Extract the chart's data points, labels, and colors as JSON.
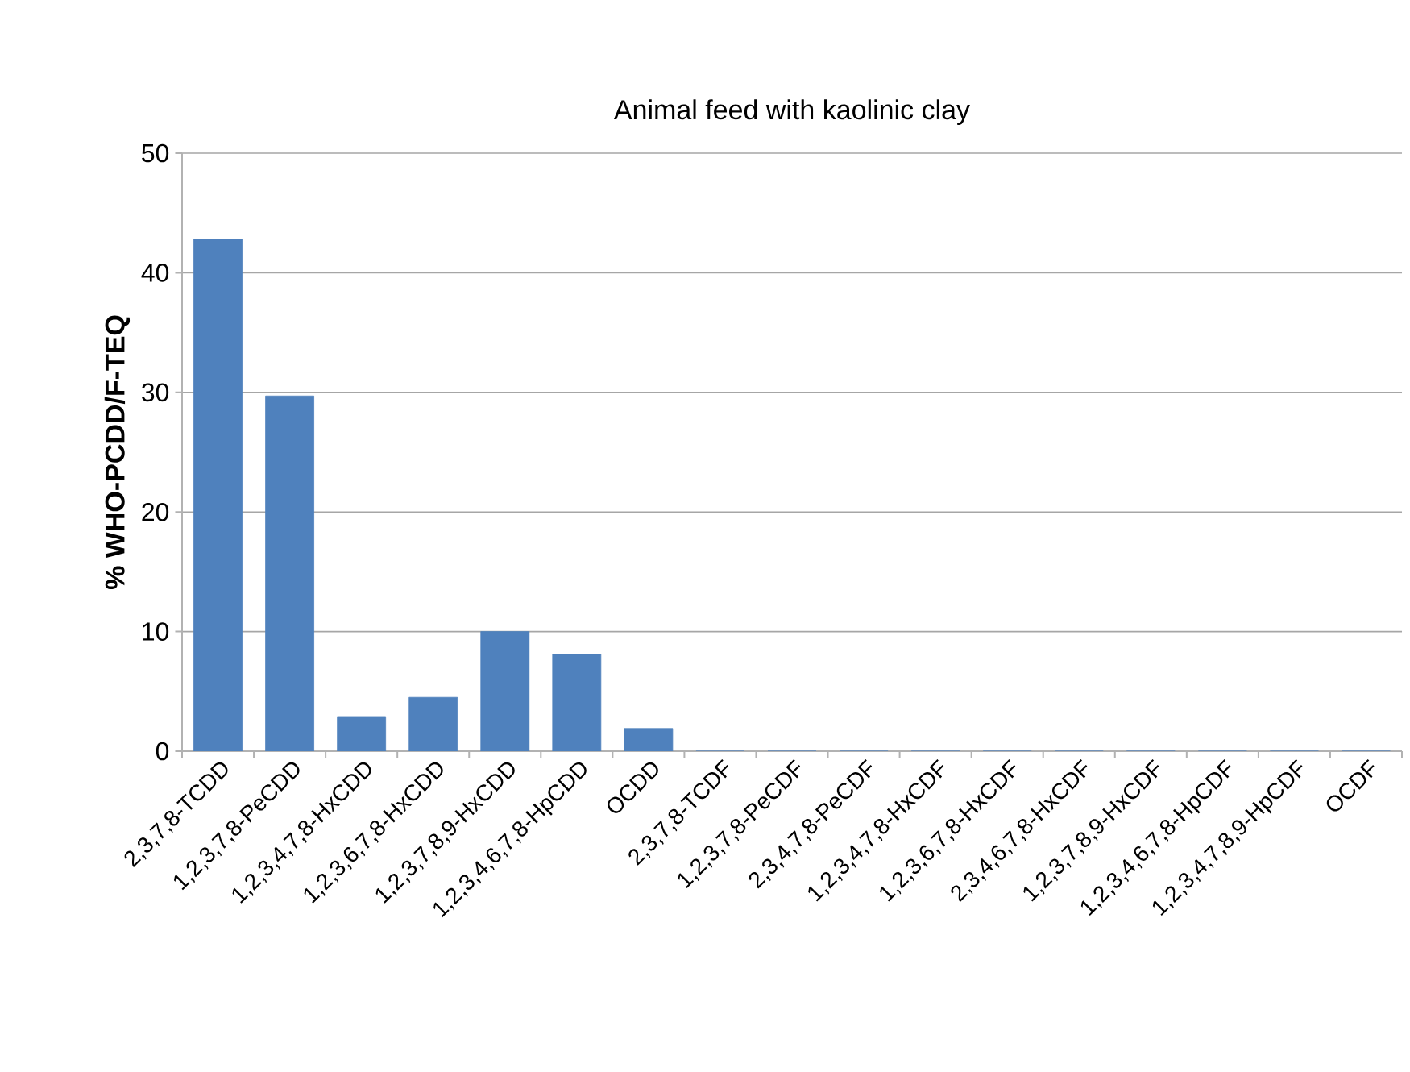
{
  "chart_data": {
    "type": "bar",
    "title": "Animal feed with kaolinic clay",
    "ylabel": "% WHO-PCDD/F-TEQ",
    "categories": [
      "2,3,7,8-TCDD",
      "1,2,3,7,8-PeCDD",
      "1,2,3,4,7,8-HxCDD",
      "1,2,3,6,7,8-HxCDD",
      "1,2,3,7,8,9-HxCDD",
      "1,2,3,4,6,7,8-HpCDD",
      "OCDD",
      "2,3,7,8-TCDF",
      "1,2,3,7,8-PeCDF",
      "2,3,4,7,8-PeCDF",
      "1,2,3,4,7,8-HxCDF",
      "1,2,3,6,7,8-HxCDF",
      "2,3,4,6,7,8-HxCDF",
      "1,2,3,7,8,9-HxCDF",
      "1,2,3,4,6,7,8-HpCDF",
      "1,2,3,4,7,8,9-HpCDF",
      "OCDF"
    ],
    "values": [
      42.8,
      29.7,
      2.9,
      4.5,
      10.0,
      8.1,
      1.9,
      0,
      0,
      0,
      0,
      0,
      0,
      0,
      0,
      0,
      0
    ],
    "color": "#4f81bd",
    "ylim": [
      0,
      50
    ],
    "yticks": [
      0,
      10,
      20,
      30,
      40,
      50
    ],
    "grid": "y"
  }
}
